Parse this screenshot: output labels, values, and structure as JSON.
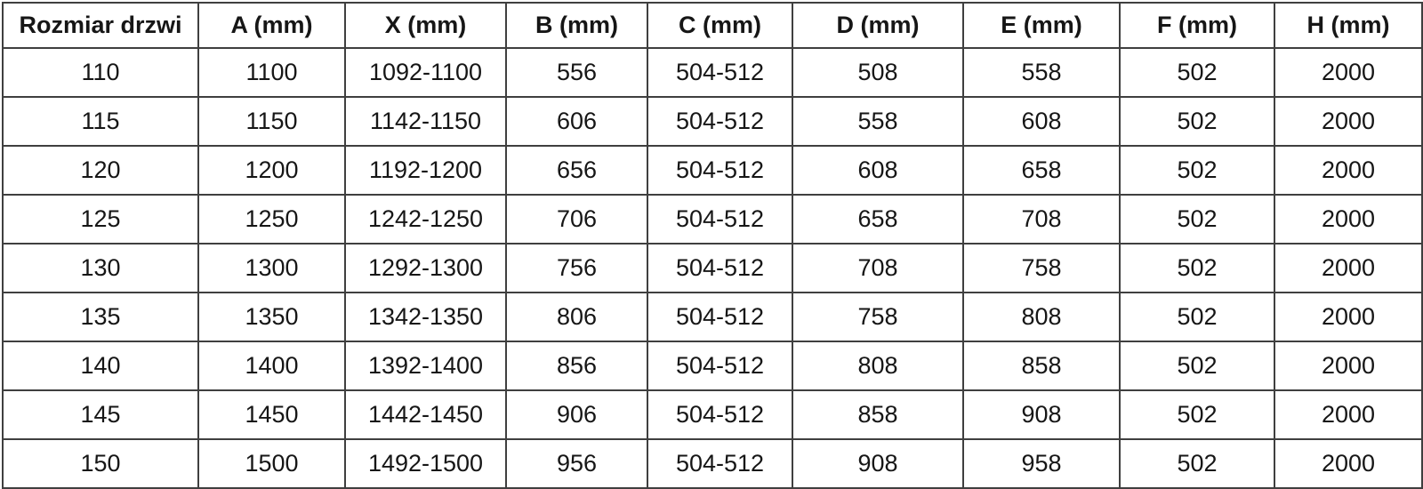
{
  "table": {
    "columns": [
      "Rozmiar drzwi",
      "A (mm)",
      "X (mm)",
      "B (mm)",
      "C (mm)",
      "D (mm)",
      "E (mm)",
      "F (mm)",
      "H (mm)"
    ],
    "rows": [
      [
        "110",
        "1100",
        "1092-1100",
        "556",
        "504-512",
        "508",
        "558",
        "502",
        "2000"
      ],
      [
        "115",
        "1150",
        "1142-1150",
        "606",
        "504-512",
        "558",
        "608",
        "502",
        "2000"
      ],
      [
        "120",
        "1200",
        "1192-1200",
        "656",
        "504-512",
        "608",
        "658",
        "502",
        "2000"
      ],
      [
        "125",
        "1250",
        "1242-1250",
        "706",
        "504-512",
        "658",
        "708",
        "502",
        "2000"
      ],
      [
        "130",
        "1300",
        "1292-1300",
        "756",
        "504-512",
        "708",
        "758",
        "502",
        "2000"
      ],
      [
        "135",
        "1350",
        "1342-1350",
        "806",
        "504-512",
        "758",
        "808",
        "502",
        "2000"
      ],
      [
        "140",
        "1400",
        "1392-1400",
        "856",
        "504-512",
        "808",
        "858",
        "502",
        "2000"
      ],
      [
        "145",
        "1450",
        "1442-1450",
        "906",
        "504-512",
        "858",
        "908",
        "502",
        "2000"
      ],
      [
        "150",
        "1500",
        "1492-1500",
        "956",
        "504-512",
        "908",
        "958",
        "502",
        "2000"
      ]
    ],
    "colors": {
      "text": "#161616",
      "grid_border": "#3f3f3f",
      "outer_border": "#262626",
      "background": "#ffffff"
    }
  }
}
